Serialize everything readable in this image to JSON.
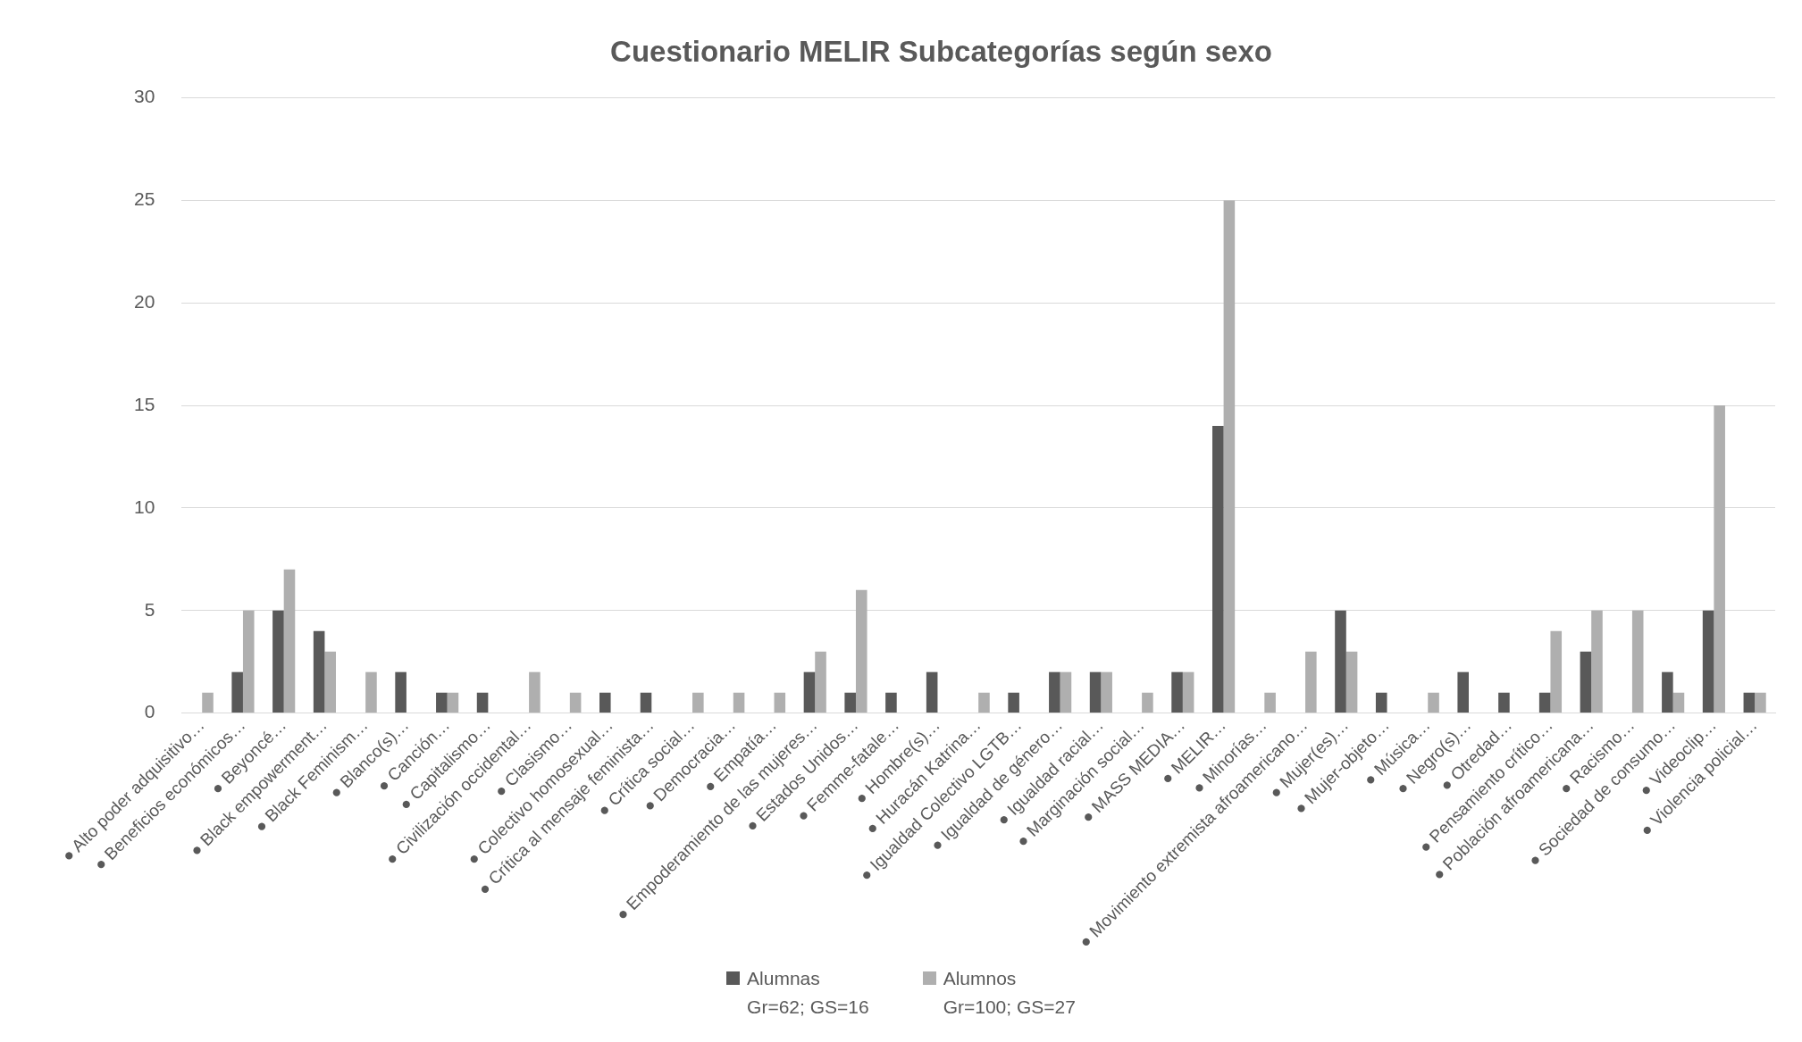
{
  "chart_data": {
    "type": "bar",
    "title": "Cuestionario MELIR Subcategorías según sexo",
    "categories": [
      "● Alto poder adquisitivo…",
      "● Beneficios económicos…",
      "● Beyoncé…",
      "● Black empowerment…",
      "● Black Feminism…",
      "● Blanco(s)…",
      "● Canción…",
      "● Capitalismo…",
      "● Civilización occidental…",
      "● Clasismo…",
      "● Colectivo homosexual…",
      "● Crítica al mensaje feminista…",
      "● Crítica social…",
      "● Democracia…",
      "● Empatía…",
      "● Empoderamiento de las mujeres…",
      "● Estados Unidos…",
      "● Femme-fatale…",
      "● Hombre(s)…",
      "● Huracán Katrina…",
      "● Igualdad Colectivo LGTB…",
      "● Igualdad de género…",
      "● Igualdad racial…",
      "● Marginación social…",
      "● MASS MEDIA…",
      "● MELIR…",
      "● Minorías…",
      "● Movimiento extremista afroamericano…",
      "● Mujer(es)…",
      "● Mujer-objeto…",
      "● Música…",
      "● Negro(s)…",
      "● Otredad…",
      "● Pensamiento crítico…",
      "● Población afroamericana…",
      "● Racismo…",
      "● Sociedad de consumo…",
      "● Videoclip…",
      "● Violencia policial…"
    ],
    "series": [
      {
        "name": "Alumnas\nGr=62;  GS=16",
        "color": "#595959",
        "values": [
          0,
          2,
          5,
          4,
          0,
          2,
          1,
          1,
          0,
          0,
          1,
          1,
          0,
          0,
          0,
          2,
          1,
          1,
          2,
          0,
          1,
          2,
          2,
          0,
          2,
          14,
          0,
          0,
          5,
          1,
          0,
          2,
          1,
          1,
          3,
          0,
          2,
          5,
          1
        ]
      },
      {
        "name": "Alumnos\nGr=100;  GS=27",
        "color": "#afafaf",
        "values": [
          1,
          5,
          7,
          3,
          2,
          0,
          1,
          0,
          2,
          1,
          0,
          0,
          1,
          1,
          1,
          3,
          6,
          0,
          0,
          1,
          0,
          2,
          2,
          1,
          2,
          25,
          1,
          3,
          3,
          0,
          1,
          0,
          0,
          4,
          5,
          5,
          1,
          15,
          1
        ]
      }
    ],
    "ylim": [
      0,
      30
    ],
    "yticks": [
      0,
      5,
      10,
      15,
      20,
      25,
      30
    ],
    "grid": "y",
    "legend": "bottom"
  }
}
